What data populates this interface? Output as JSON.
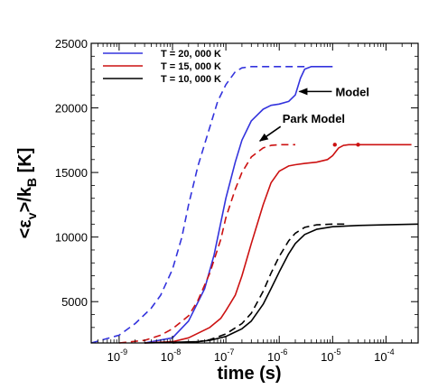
{
  "chart_data": {
    "type": "line",
    "xlabel": "time (s)",
    "ylabel": "<εv>/kB [K]",
    "x_scale": "log",
    "xlim": [
      3e-10,
      0.0004
    ],
    "ylim": [
      1800,
      25000
    ],
    "y_ticks": [
      5000,
      10000,
      15000,
      20000,
      25000
    ],
    "y_tick_labels": [
      "5000",
      "10000",
      "15000",
      "20000",
      "25000"
    ],
    "x_ticks": [
      1e-09,
      1e-08,
      1e-07,
      1e-06,
      1e-05,
      0.0001
    ],
    "x_tick_labels": [
      {
        "base": "10",
        "exp": "-9"
      },
      {
        "base": "10",
        "exp": "-8"
      },
      {
        "base": "10",
        "exp": "-7"
      },
      {
        "base": "10",
        "exp": "-6"
      },
      {
        "base": "10",
        "exp": "-5"
      },
      {
        "base": "10",
        "exp": "-4"
      }
    ],
    "grid": false,
    "legend_position": "top-left",
    "series": [
      {
        "name": "T = 20, 000 K",
        "color": "#3333dd",
        "style": "solid",
        "x": [
          3e-09,
          1e-08,
          2e-08,
          4e-08,
          6e-08,
          1e-07,
          1.5e-07,
          2e-07,
          3e-07,
          5e-07,
          7e-07,
          1e-06,
          1.5e-06,
          2e-06,
          2.5e-06,
          3e-06,
          4e-06,
          6e-06,
          1e-05
        ],
        "y": [
          1800,
          2200,
          3500,
          6000,
          8600,
          13000,
          15800,
          17500,
          19000,
          19900,
          20200,
          20300,
          20500,
          21000,
          22300,
          23000,
          23200,
          23200,
          23200
        ]
      },
      {
        "name": "T = 20, 000 K (Park Model)",
        "color": "#3333dd",
        "style": "dashed",
        "x": [
          3e-10,
          1e-09,
          2e-09,
          4e-09,
          6e-09,
          1e-08,
          1.5e-08,
          2e-08,
          3e-08,
          5e-08,
          7e-08,
          1e-07,
          1.5e-07,
          2e-07,
          3e-07,
          4e-07,
          5e-07,
          6e-07,
          1e-06,
          3e-06
        ],
        "y": [
          1800,
          2400,
          3300,
          4500,
          5500,
          7500,
          10000,
          12500,
          15500,
          18500,
          20500,
          21800,
          22800,
          23100,
          23200,
          23200,
          23200,
          23200,
          23200,
          23200
        ]
      },
      {
        "name": "T = 15, 000 K",
        "color": "#cc1111",
        "style": "solid",
        "x": [
          3e-09,
          1e-08,
          2e-08,
          5e-08,
          8e-08,
          1e-07,
          1.5e-07,
          2e-07,
          3e-07,
          5e-07,
          7e-07,
          1e-06,
          1.5e-06,
          2e-06,
          3e-06,
          5e-06,
          8e-06,
          1e-05,
          1.3e-05,
          1.6e-05,
          2e-05,
          5e-05,
          0.0001,
          0.0003
        ],
        "y": [
          1800,
          1900,
          2200,
          3000,
          3700,
          4300,
          5500,
          7000,
          9500,
          12500,
          14200,
          15100,
          15500,
          15600,
          15700,
          15800,
          16000,
          16300,
          16900,
          17100,
          17150,
          17150,
          17150,
          17150
        ]
      },
      {
        "name": "T = 15, 000 K (Park Model)",
        "color": "#cc1111",
        "style": "dashed",
        "x": [
          1e-09,
          3e-09,
          6e-09,
          1e-08,
          2e-08,
          3e-08,
          5e-08,
          8e-08,
          1e-07,
          1.5e-07,
          2e-07,
          3e-07,
          5e-07,
          7e-07,
          1e-06,
          2e-06
        ],
        "y": [
          1800,
          2000,
          2400,
          2900,
          3900,
          5100,
          7200,
          9800,
          11500,
          13700,
          15000,
          16200,
          16900,
          17100,
          17150,
          17150
        ]
      },
      {
        "name": "T = 10, 000 K",
        "color": "#000000",
        "style": "solid",
        "x": [
          3e-09,
          1e-08,
          3e-08,
          5e-08,
          1e-07,
          2e-07,
          3e-07,
          5e-07,
          7e-07,
          1e-06,
          1.5e-06,
          2e-06,
          3e-06,
          5e-06,
          1e-05,
          3e-05,
          0.0001,
          0.0004
        ],
        "y": [
          1800,
          1850,
          1900,
          2000,
          2300,
          2900,
          3500,
          4800,
          6000,
          7300,
          8700,
          9500,
          10200,
          10600,
          10800,
          10900,
          10950,
          11000
        ]
      },
      {
        "name": "T = 10, 000 K (Park Model)",
        "color": "#000000",
        "style": "dashed",
        "x": [
          1e-08,
          3e-08,
          5e-08,
          1e-07,
          2e-07,
          3e-07,
          5e-07,
          7e-07,
          1e-06,
          1.5e-06,
          2e-06,
          3e-06,
          5e-06,
          1e-05,
          2e-05
        ],
        "y": [
          1800,
          1900,
          2050,
          2500,
          3300,
          4100,
          5800,
          7200,
          8500,
          9700,
          10300,
          10750,
          10950,
          11000,
          11000
        ]
      }
    ],
    "legend": [
      {
        "label": "T = 20, 000 K",
        "color": "#3333dd"
      },
      {
        "label": "T = 15, 000 K",
        "color": "#cc1111"
      },
      {
        "label": "T = 10, 000 K",
        "color": "#000000"
      }
    ],
    "annotations": [
      {
        "text": "Model",
        "point_x": 2.2e-06,
        "point_y": 21200
      },
      {
        "text": "Park Model",
        "point_x": 4e-07,
        "point_y": 17300
      }
    ],
    "markers": [
      {
        "x": 1.1e-05,
        "y": 17150,
        "color": "#cc1111"
      },
      {
        "x": 3e-05,
        "y": 17150,
        "color": "#cc1111"
      }
    ]
  }
}
